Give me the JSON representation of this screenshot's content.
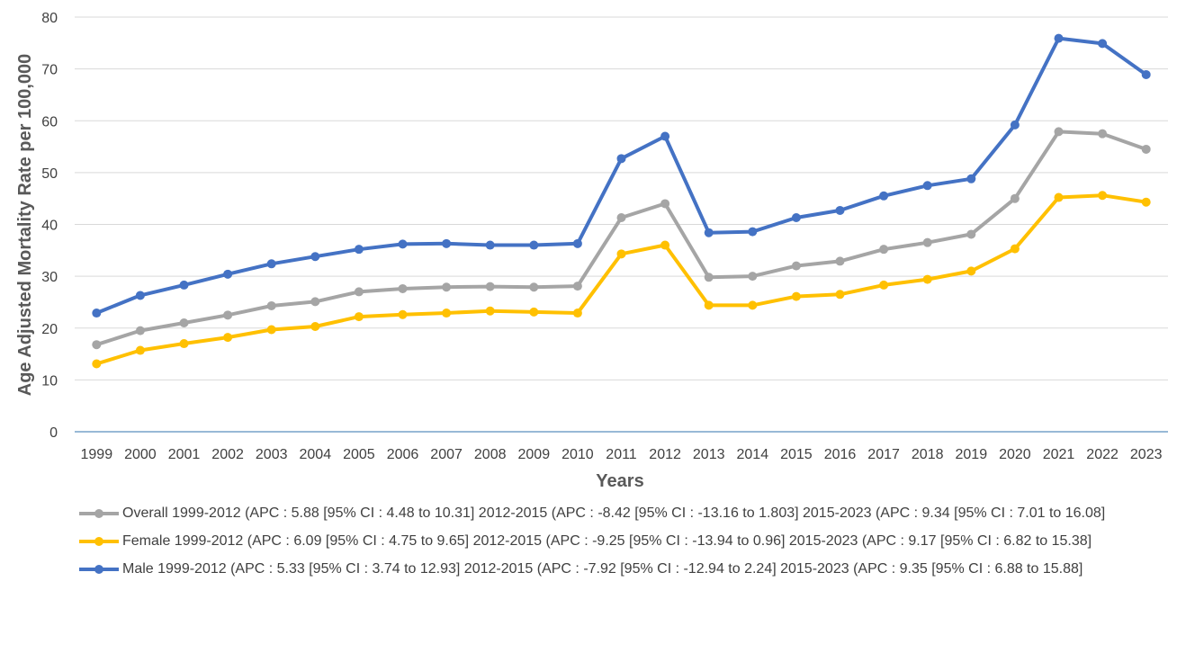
{
  "chart_data": {
    "type": "line",
    "xlabel": "Years",
    "ylabel": "Age Adjusted Mortality Rate per 100,000",
    "ylim": [
      0,
      80
    ],
    "yticks": [
      0,
      10,
      20,
      30,
      40,
      50,
      60,
      70,
      80
    ],
    "grid": true,
    "legend_position": "bottom",
    "categories": [
      "1999",
      "2000",
      "2001",
      "2002",
      "2003",
      "2004",
      "2005",
      "2006",
      "2007",
      "2008",
      "2009",
      "2010",
      "2011",
      "2012",
      "2013",
      "2014",
      "2015",
      "2016",
      "2017",
      "2018",
      "2019",
      "2020",
      "2021",
      "2022",
      "2023"
    ],
    "series": [
      {
        "name": "Overall 1999-2012 (APC : 5.88 [95% CI : 4.48 to 10.31]  2012-2015 (APC : -8.42 [95% CI : -13.16 to 1.803]  2015-2023 (APC : 9.34 [95% CI : 7.01 to 16.08]",
        "color": "#a5a5a5",
        "values": [
          16.8,
          19.5,
          21.0,
          22.5,
          24.3,
          25.1,
          27.0,
          27.6,
          27.9,
          28.0,
          27.9,
          28.1,
          41.3,
          44.0,
          29.8,
          30.0,
          32.0,
          32.9,
          35.2,
          36.5,
          38.1,
          45.0,
          57.9,
          57.5,
          54.5
        ]
      },
      {
        "name": "Female 1999-2012 (APC : 6.09 [95% CI : 4.75 to 9.65]  2012-2015 (APC : -9.25 [95% CI : -13.94 to 0.96]  2015-2023 (APC : 9.17 [95% CI : 6.82 to 15.38]",
        "color": "#ffc000",
        "values": [
          13.1,
          15.7,
          17.0,
          18.2,
          19.7,
          20.3,
          22.2,
          22.6,
          22.9,
          23.3,
          23.1,
          22.9,
          34.3,
          36.0,
          24.4,
          24.4,
          26.1,
          26.5,
          28.3,
          29.4,
          31.0,
          35.3,
          45.2,
          45.6,
          44.3
        ]
      },
      {
        "name": "Male 1999-2012 (APC : 5.33 [95% CI : 3.74 to 12.93]  2012-2015 (APC : -7.92 [95% CI : -12.94 to 2.24]  2015-2023 (APC : 9.35 [95% CI : 6.88 to 15.88]",
        "color": "#4472c4",
        "values": [
          22.9,
          26.3,
          28.3,
          30.4,
          32.4,
          33.8,
          35.2,
          36.2,
          36.3,
          36.0,
          36.0,
          36.3,
          52.7,
          57.0,
          38.4,
          38.6,
          41.3,
          42.7,
          45.5,
          47.5,
          48.8,
          59.2,
          75.9,
          74.9,
          68.9
        ]
      }
    ]
  }
}
